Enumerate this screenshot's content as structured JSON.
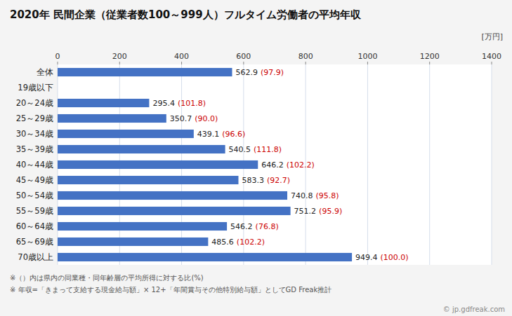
{
  "chart_data": {
    "type": "bar",
    "orientation": "horizontal",
    "title": "2020年 民間企業（従業者数100～999人）フルタイム労働者の平均年収",
    "xlabel": "[万円]",
    "categories": [
      "全体",
      "19歳以下",
      "20～24歳",
      "25～29歳",
      "30～34歳",
      "35～39歳",
      "40～44歳",
      "45～49歳",
      "50～54歳",
      "55～59歳",
      "60～64歳",
      "65～69歳",
      "70歳以上"
    ],
    "values": [
      562.9,
      0,
      295.4,
      350.7,
      439.1,
      540.5,
      646.2,
      583.3,
      740.8,
      751.2,
      546.2,
      485.6,
      949.4
    ],
    "value_labels": [
      "562.9",
      null,
      "295.4",
      "350.7",
      "439.1",
      "540.5",
      "646.2",
      "583.3",
      "740.8",
      "751.2",
      "546.2",
      "485.6",
      "949.4"
    ],
    "ratio_labels": [
      "(97.9)",
      null,
      "(101.8)",
      "(90.0)",
      "(96.6)",
      "(111.8)",
      "(102.2)",
      "(92.7)",
      "(95.8)",
      "(95.9)",
      "(76.8)",
      "(102.2)",
      "(100.0)"
    ],
    "color": "#4472c4",
    "xlim": [
      0,
      1400
    ],
    "xticks": [
      0,
      200,
      400,
      600,
      800,
      1000,
      1200,
      1400
    ],
    "grid": true,
    "data_labels": true,
    "annotations": [
      "※（）内は県内の同業種・同年齢層の平均所得に対する比(%)",
      "※ 年収=「きまって支給する現金給与額」× 12+「年間賞与その他特別給与額」としてGD Freak推計",
      "© jp.gdfreak.com"
    ]
  }
}
